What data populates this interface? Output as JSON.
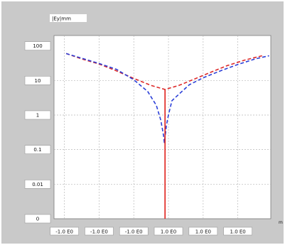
{
  "chart_data": {
    "type": "line",
    "title": "",
    "ylabel": "|Ey|mm",
    "xlabel": "m",
    "y_scale": "log",
    "ylim": [
      0.001,
      200
    ],
    "y_ticks": [
      {
        "value": 100,
        "label": "100"
      },
      {
        "value": 10,
        "label": "10"
      },
      {
        "value": 1,
        "label": "1"
      },
      {
        "value": 0.1,
        "label": "0.1"
      },
      {
        "value": 0.01,
        "label": "0.01"
      },
      {
        "value": 0.001,
        "label": "0"
      }
    ],
    "x_ticks": [
      {
        "value": -3,
        "label": "-1.0 E0"
      },
      {
        "value": -2,
        "label": "-1.0 E0"
      },
      {
        "value": -1,
        "label": "-1.0 E0"
      },
      {
        "value": 0,
        "label": "1.0 E0"
      },
      {
        "value": 1,
        "label": "1.0 E0"
      },
      {
        "value": 2,
        "label": "1.0 E0"
      }
    ],
    "xlim": [
      -3.3,
      2.95
    ],
    "grid": true,
    "series": [
      {
        "color": "#dd2a2a",
        "style": "dashed",
        "x": [
          -2.95,
          -2.5,
          -2.0,
          -1.5,
          -1.0,
          -0.5,
          -0.1,
          0.3,
          0.7,
          1.2,
          1.7,
          2.2,
          2.7
        ],
        "y": [
          60,
          42,
          30,
          19,
          11.5,
          7.2,
          5.5,
          7.2,
          10.5,
          17,
          27,
          39,
          52
        ]
      },
      {
        "color": "#2b3fd8",
        "style": "dashed",
        "x": [
          -2.95,
          -2.5,
          -2.0,
          -1.5,
          -1.0,
          -0.6,
          -0.35,
          -0.22,
          -0.14,
          -0.12,
          -0.1,
          -0.08,
          -0.06,
          0.0,
          0.1,
          0.3,
          0.6,
          1.0,
          1.5,
          2.0,
          2.5,
          2.9
        ],
        "y": [
          60,
          44,
          31,
          21,
          10.5,
          4.8,
          1.9,
          0.7,
          0.25,
          0.16,
          0.24,
          0.32,
          0.5,
          1.0,
          2.6,
          4.0,
          7.5,
          12,
          19,
          29,
          42,
          52
        ]
      },
      {
        "color": "#e0201a",
        "style": "solid",
        "x": [
          -0.1,
          -0.1
        ],
        "y": [
          5.5,
          0.001
        ]
      }
    ]
  }
}
